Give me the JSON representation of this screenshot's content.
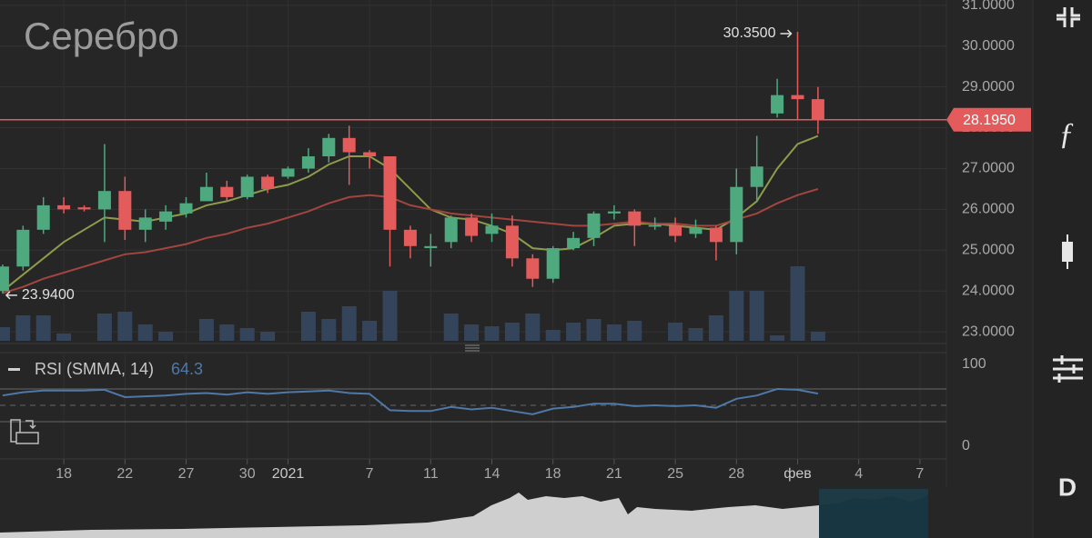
{
  "chart_data": [
    {
      "type": "candlestick",
      "title": "Серебро",
      "up_color": "#4fa97f",
      "down_color": "#e35b5b",
      "volume_color": "#34445a",
      "open": [
        24.0,
        24.6,
        25.5,
        26.1,
        26.05,
        26.0,
        26.45,
        25.5,
        25.7,
        25.9,
        26.2,
        26.55,
        26.3,
        26.8,
        26.8,
        27.0,
        27.3,
        27.75,
        27.4,
        27.3,
        25.5,
        25.05,
        25.2,
        25.8,
        25.4,
        25.6,
        24.8,
        24.3,
        25.05,
        25.3,
        25.9,
        25.95,
        25.6,
        25.6,
        25.4,
        25.55,
        25.2,
        26.55,
        28.35,
        28.8,
        28.7
      ],
      "high": [
        24.65,
        25.6,
        26.3,
        26.3,
        26.1,
        27.6,
        26.8,
        26.0,
        26.1,
        26.3,
        26.9,
        26.7,
        26.85,
        26.85,
        27.05,
        27.5,
        27.85,
        28.05,
        27.45,
        27.3,
        25.6,
        25.4,
        25.85,
        25.9,
        25.9,
        25.85,
        24.9,
        25.1,
        25.45,
        25.95,
        26.1,
        26.0,
        25.8,
        25.8,
        25.75,
        25.6,
        27.0,
        27.8,
        29.2,
        30.35,
        29.0
      ],
      "low": [
        23.94,
        24.5,
        25.4,
        25.9,
        25.95,
        25.2,
        25.25,
        25.2,
        25.5,
        25.8,
        26.2,
        26.2,
        26.25,
        26.4,
        26.75,
        26.9,
        27.15,
        26.6,
        27.0,
        24.6,
        24.8,
        24.6,
        25.05,
        25.2,
        25.2,
        24.6,
        24.1,
        24.2,
        25.0,
        25.1,
        25.75,
        25.1,
        25.5,
        25.2,
        25.3,
        24.75,
        24.9,
        26.2,
        28.25,
        28.2,
        27.85
      ],
      "close": [
        24.6,
        25.5,
        26.1,
        26.0,
        26.0,
        26.45,
        25.5,
        25.8,
        25.95,
        26.15,
        26.55,
        26.3,
        26.8,
        26.5,
        27.0,
        27.3,
        27.75,
        27.4,
        27.3,
        25.5,
        25.1,
        25.1,
        25.8,
        25.35,
        25.6,
        24.8,
        24.3,
        25.05,
        25.3,
        25.9,
        25.95,
        25.6,
        25.62,
        25.35,
        25.55,
        25.2,
        26.55,
        27.05,
        28.8,
        28.7,
        28.195
      ],
      "volume": [
        15,
        28,
        28,
        8,
        0,
        30,
        32,
        18,
        10,
        0,
        24,
        18,
        14,
        10,
        0,
        32,
        24,
        38,
        22,
        55,
        0,
        0,
        30,
        18,
        16,
        20,
        30,
        12,
        20,
        24,
        18,
        22,
        0,
        20,
        14,
        28,
        55,
        55,
        6,
        82,
        10
      ],
      "series": [
        {
          "color": "#8e9a4c",
          "values": [
            24.0,
            24.4,
            24.8,
            25.2,
            25.5,
            25.8,
            25.75,
            25.7,
            25.8,
            25.9,
            26.1,
            26.2,
            26.35,
            26.5,
            26.6,
            26.8,
            27.1,
            27.3,
            27.3,
            27.0,
            26.5,
            26.0,
            25.8,
            25.75,
            25.6,
            25.4,
            25.05,
            25.0,
            25.05,
            25.3,
            25.6,
            25.65,
            25.65,
            25.6,
            25.55,
            25.5,
            25.8,
            26.2,
            27.0,
            27.6,
            27.8
          ]
        },
        {
          "color": "#a2453f",
          "values": [
            23.95,
            24.1,
            24.3,
            24.45,
            24.6,
            24.75,
            24.9,
            24.95,
            25.05,
            25.15,
            25.3,
            25.4,
            25.55,
            25.65,
            25.8,
            25.95,
            26.15,
            26.3,
            26.35,
            26.3,
            26.1,
            26.0,
            25.9,
            25.85,
            25.8,
            25.75,
            25.7,
            25.65,
            25.6,
            25.6,
            25.65,
            25.7,
            25.65,
            25.65,
            25.6,
            25.6,
            25.75,
            25.9,
            26.15,
            26.35,
            26.5
          ]
        }
      ],
      "xlim": [
        -0.13,
        46.3
      ],
      "xticks": [
        {
          "value": 3,
          "label": "18"
        },
        {
          "value": 6,
          "label": "22"
        },
        {
          "value": 9,
          "label": "27"
        },
        {
          "value": 12,
          "label": "30"
        },
        {
          "value": 14,
          "label": "2021"
        },
        {
          "value": 18,
          "label": "7"
        },
        {
          "value": 21,
          "label": "11"
        },
        {
          "value": 24,
          "label": "14"
        },
        {
          "value": 27,
          "label": "18"
        },
        {
          "value": 30,
          "label": "21"
        },
        {
          "value": 33,
          "label": "25"
        },
        {
          "value": 36,
          "label": "28"
        },
        {
          "value": 39,
          "label": "фев"
        },
        {
          "value": 42,
          "label": "4"
        },
        {
          "value": 45,
          "label": "7"
        }
      ],
      "ylim": [
        22.78,
        31.13
      ],
      "yticks": [
        {
          "value": 23,
          "label": "23.0000"
        },
        {
          "value": 24,
          "label": "24.0000"
        },
        {
          "value": 25,
          "label": "25.0000"
        },
        {
          "value": 26,
          "label": "26.0000"
        },
        {
          "value": 27,
          "label": "27.0000"
        },
        {
          "value": 28,
          "label": "28.0000"
        },
        {
          "value": 29,
          "label": "29.0000"
        },
        {
          "value": 30,
          "label": "30.0000"
        },
        {
          "value": 31,
          "label": "31.0000"
        }
      ],
      "grid": true,
      "high_label": {
        "value": 30.35,
        "label": "30.3500"
      },
      "low_label": {
        "value": 23.94,
        "label": "23.9400"
      },
      "last_price": {
        "value": 28.195,
        "label": "28.1950"
      }
    },
    {
      "type": "line",
      "title": "RSI (SMMA, 14)",
      "series": [
        {
          "color": "#4f78a8",
          "values": [
            62,
            66,
            68,
            68,
            68,
            69,
            60,
            61,
            62,
            64,
            65,
            63,
            66,
            64,
            66,
            67,
            68,
            65,
            64,
            44,
            43,
            43,
            48,
            45,
            47,
            43,
            39,
            46,
            48,
            52,
            52,
            49,
            50,
            49,
            50,
            47,
            58,
            62,
            70,
            69,
            64.3
          ]
        }
      ],
      "xlim": [
        -0.13,
        46.3
      ],
      "ylim": [
        -15.6,
        112.2
      ],
      "yticks": [
        0,
        100
      ],
      "levels": [
        30,
        70
      ],
      "midline": 50,
      "grid": true
    }
  ],
  "toolbar": {
    "indicators": "ƒ",
    "interval": "D"
  }
}
